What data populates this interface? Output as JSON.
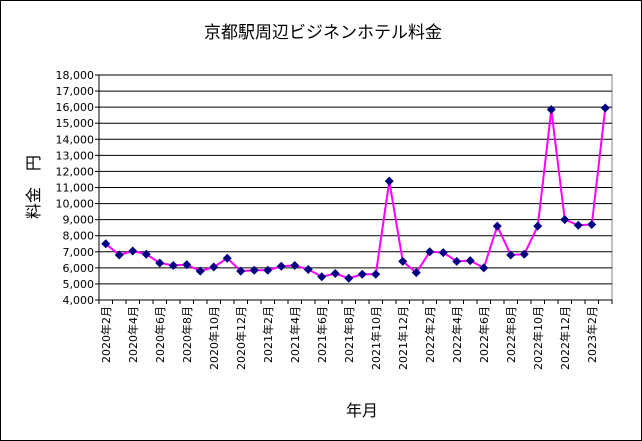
{
  "chart_data": {
    "type": "line",
    "title": "京都駅周辺ビジネンホテル料金",
    "xlabel": "年月",
    "ylabel": "料金　円",
    "ylim": [
      4000,
      18000
    ],
    "y_ticks": [
      "4,000",
      "5,000",
      "6,000",
      "7,000",
      "8,000",
      "9,000",
      "10,000",
      "11,000",
      "12,000",
      "13,000",
      "14,000",
      "15,000",
      "16,000",
      "17,000",
      "18,000"
    ],
    "x_ticks": [
      "2020年2月",
      "2020年4月",
      "2020年6月",
      "2020年8月",
      "2020年10月",
      "2020年12月",
      "2021年2月",
      "2021年4月",
      "2021年6月",
      "2021年8月",
      "2021年10月",
      "2021年12月",
      "2022年2月",
      "2022年4月",
      "2022年6月",
      "2022年8月",
      "2022年10月",
      "2022年12月",
      "2023年2月"
    ],
    "grid": true,
    "legend": "none",
    "line_color": "#ff00ff",
    "marker_color": "#000080",
    "series": [
      {
        "values": [
          7500,
          6800,
          7050,
          6850,
          6300,
          6150,
          6200,
          5800,
          6050,
          6600,
          5800,
          5850,
          5850,
          6100,
          6150,
          5900,
          5450,
          5650,
          5350,
          5600,
          5600,
          11400,
          6400,
          5700,
          7000,
          6950,
          6400,
          6450,
          6000,
          8600,
          6800,
          6850,
          8600,
          15850,
          9000,
          8650,
          8700,
          15950
        ]
      }
    ]
  }
}
